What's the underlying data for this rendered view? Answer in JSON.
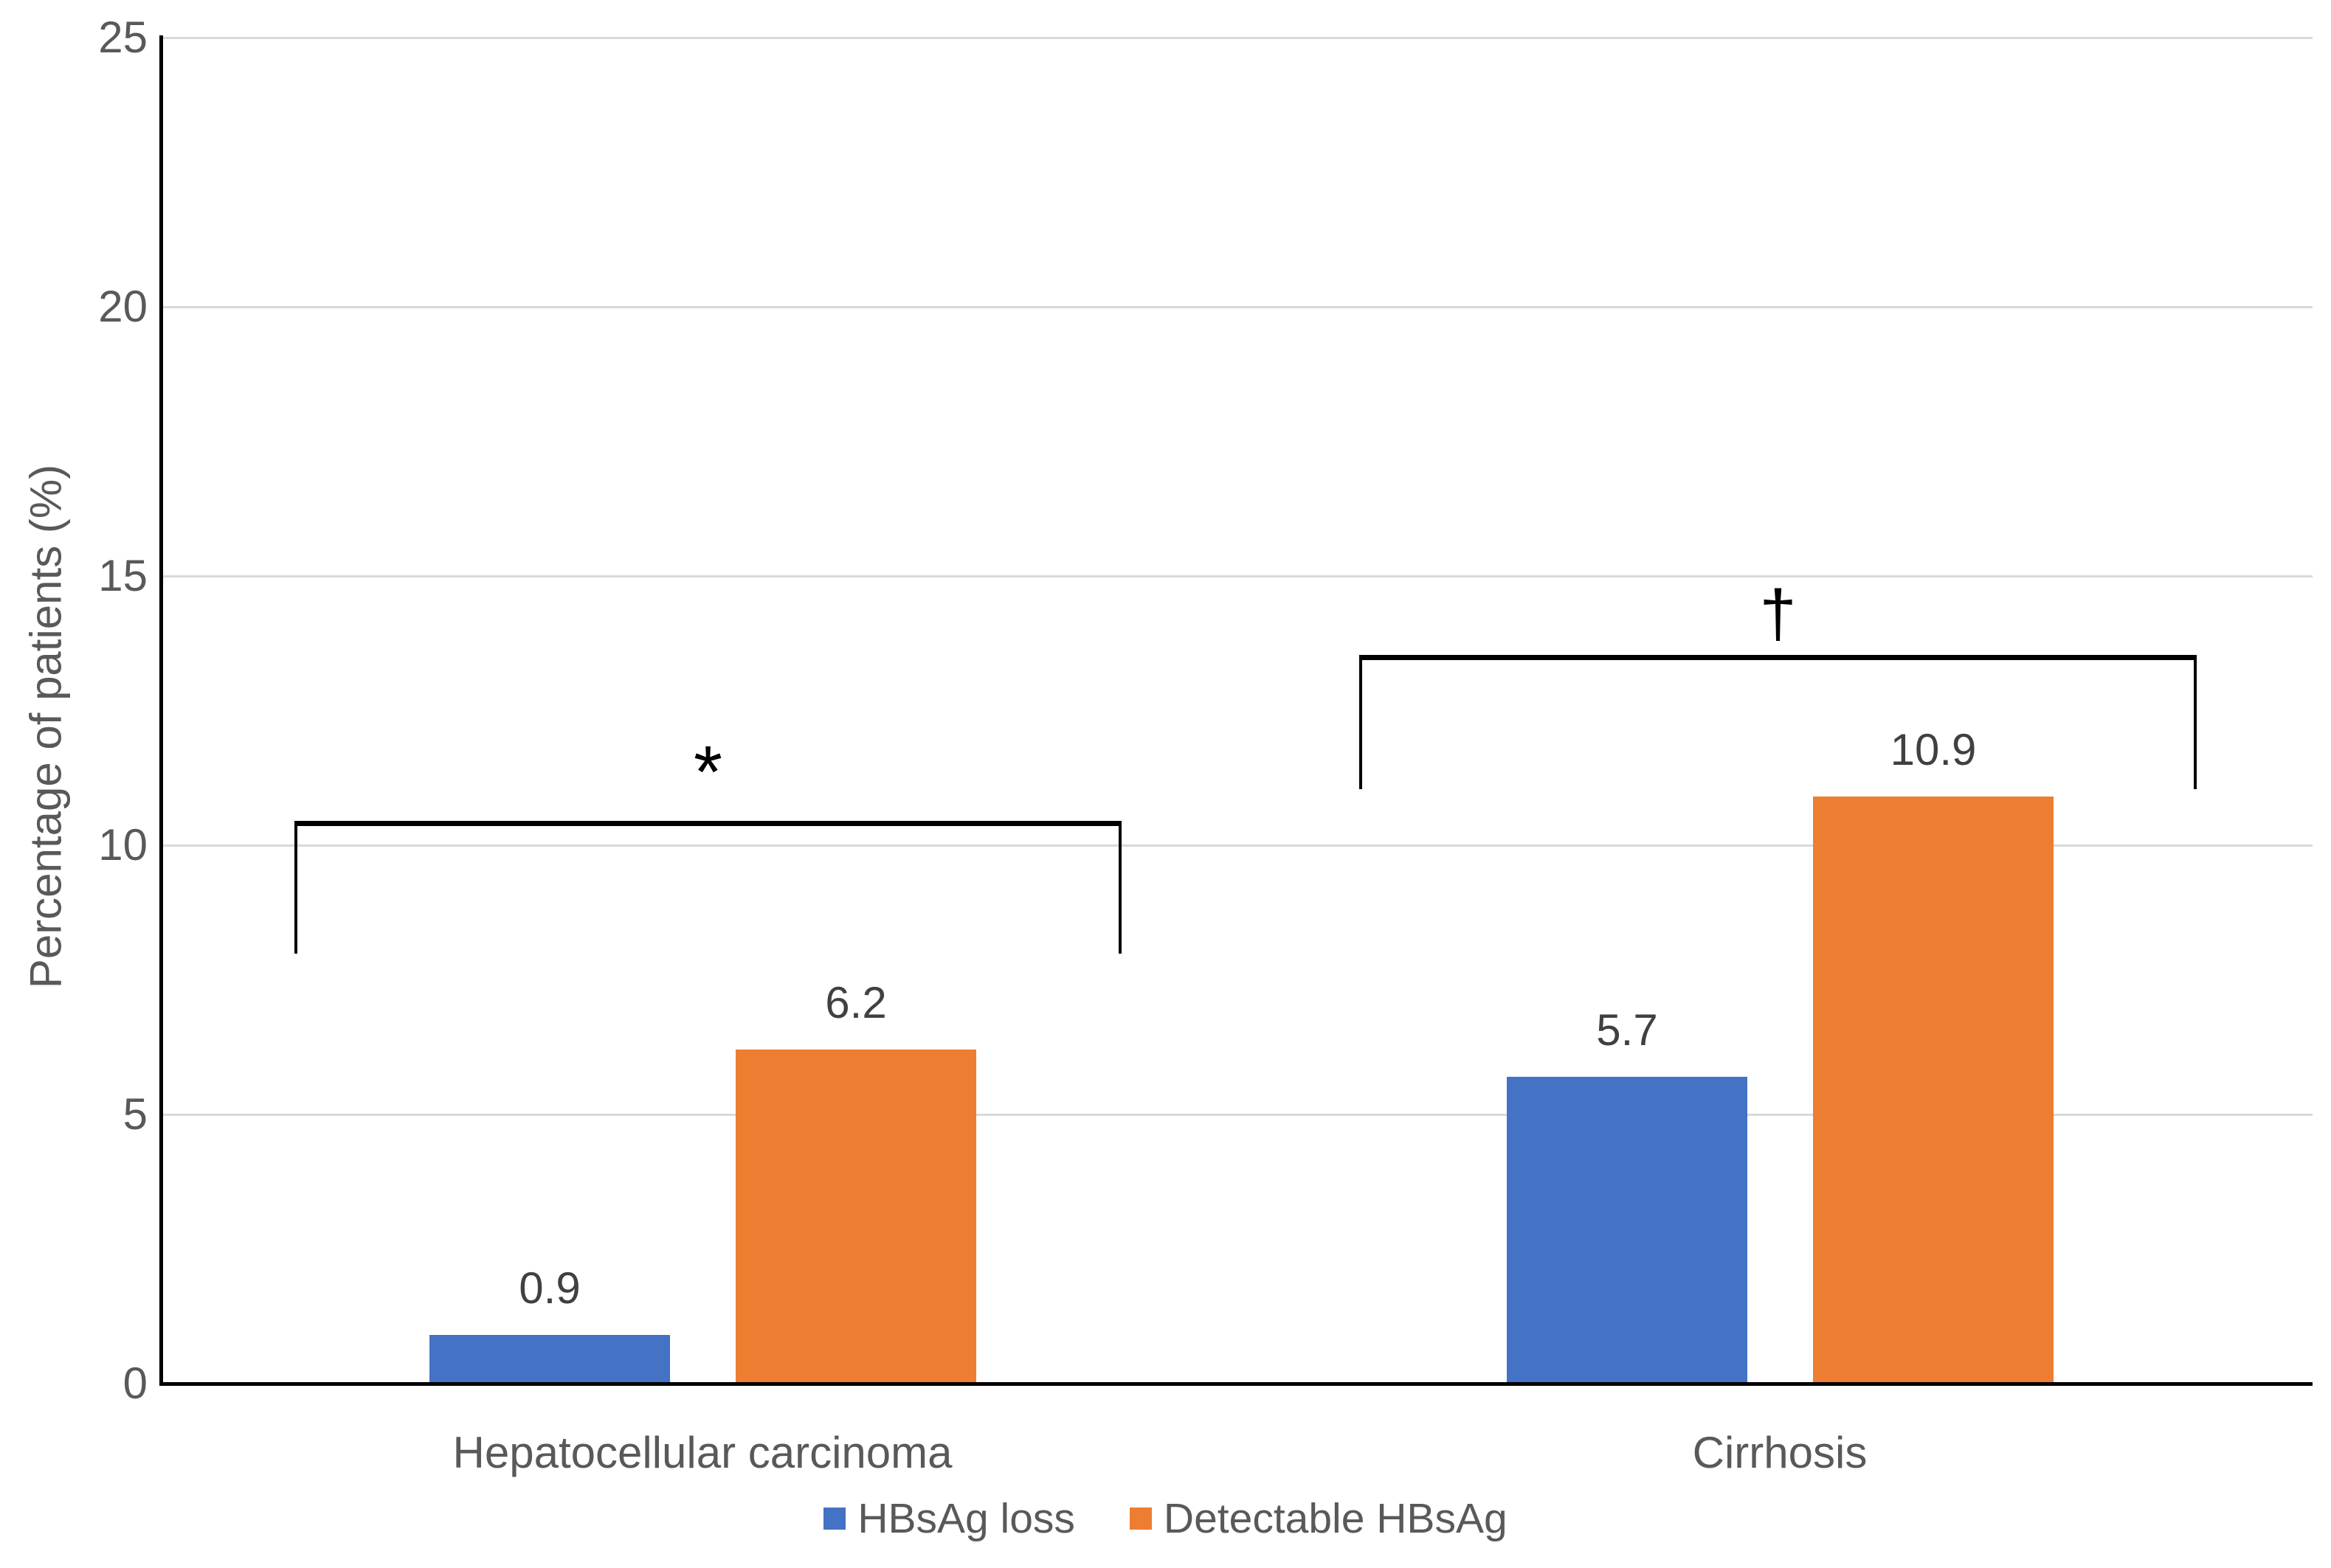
{
  "chart_data": {
    "type": "bar",
    "title": "",
    "xlabel": "",
    "ylabel": "Percentage of patients (%)",
    "ylim": [
      0,
      25
    ],
    "yticks": [
      0,
      5,
      10,
      15,
      20,
      25
    ],
    "grid": true,
    "legend_position": "bottom",
    "categories": [
      "Hepatocellular carcinoma",
      "Cirrhosis"
    ],
    "series": [
      {
        "name": "HBsAg loss",
        "color": "#4472C4",
        "values": [
          0.9,
          5.7
        ],
        "labels": [
          "0.9",
          "5.7"
        ]
      },
      {
        "name": "Detectable HBsAg",
        "color": "#ED7D31",
        "values": [
          6.2,
          10.9
        ],
        "labels": [
          "6.2",
          "10.9"
        ]
      }
    ],
    "annotations": [
      {
        "symbol": "*",
        "category": "Hepatocellular carcinoma"
      },
      {
        "symbol": "†",
        "category": "Cirrhosis"
      }
    ]
  },
  "colors": {
    "axis": "#000000",
    "gridline": "#D9D9D9",
    "axis_text": "#595959",
    "data_label_text": "#404040",
    "bracket": "#000000"
  }
}
